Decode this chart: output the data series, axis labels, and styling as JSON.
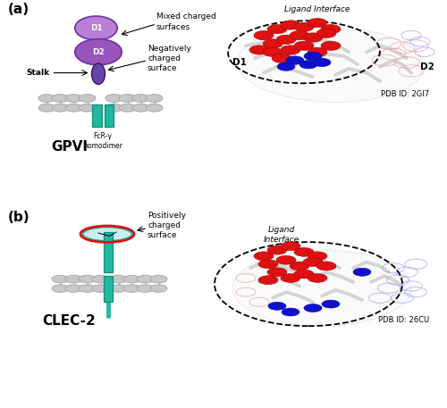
{
  "panel_a_label": "(a)",
  "panel_b_label": "(b)",
  "gpvi_label": "GPVI",
  "clec2_label": "CLEC-2",
  "pdb_a": "PDB ID: 2GI7",
  "pdb_b": "PDB ID: 26CU",
  "mixed_charged": "Mixed charged\nsurfaces",
  "negatively_charged": "Negatively\ncharged\nsurface",
  "positively_charged": "Positively\ncharged\nsurface",
  "ligand_interface_a": "Ligand Interface",
  "ligand_interface_b": "Ligand\nInterface",
  "fcrg": "FcR-γ\nhomodimer",
  "d1_label_diagram": "D1",
  "d2_label_diagram": "D2",
  "stalk_label": "Stalk",
  "d1_label_surface": "D1",
  "d2_label_surface": "D2",
  "color_purple_light": "#c8a0d8",
  "color_purple_d1": "#b87fd4",
  "color_purple_d2": "#9955bb",
  "color_purple_stalk": "#6644aa",
  "color_teal": "#20b8a0",
  "color_teal_dark": "#148f77",
  "color_gray_head": "#c8c8c8",
  "color_gray_tail": "#aaaaaa",
  "color_red_sphere": "#dd1111",
  "color_red_dark": "#aa0000",
  "color_blue_sphere": "#1111cc",
  "color_blue_dark": "#0000aa",
  "color_red_mesh": "#e8aaaa",
  "color_blue_mesh": "#aaaaee",
  "color_white": "#ffffff",
  "color_black": "#000000",
  "color_ribbon": "#d8d8d8",
  "color_ribbon_edge": "#b0b0b0"
}
